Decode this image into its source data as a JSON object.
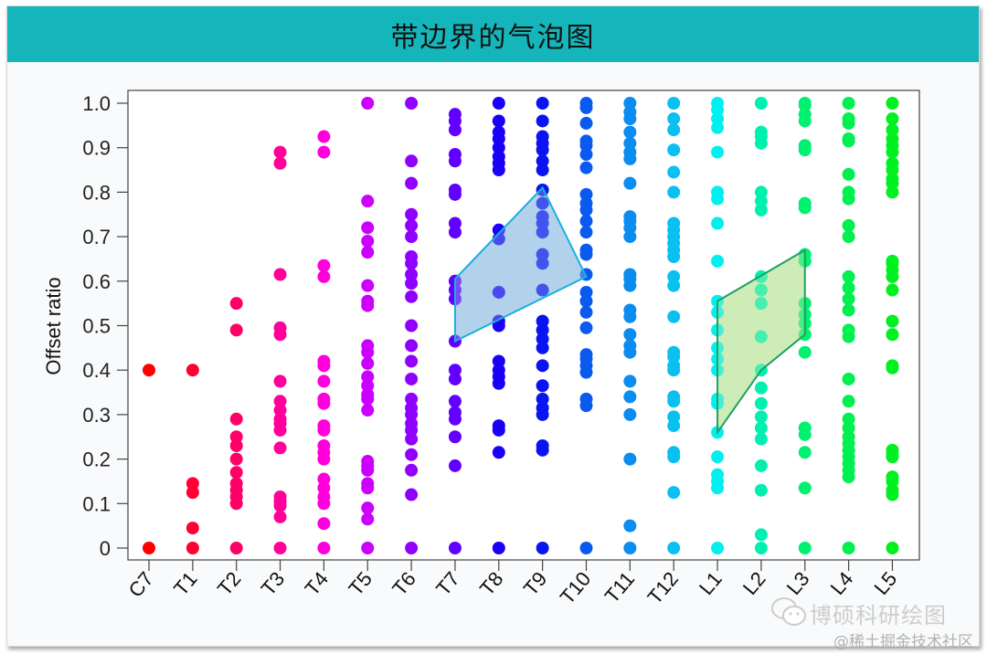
{
  "header": {
    "title": "带边界的气泡图"
  },
  "watermarks": {
    "wechat": "博硕科研绘图",
    "site": "@稀土掘金技术社区"
  },
  "chart_data": {
    "type": "scatter",
    "title": "带边界的气泡图",
    "xlabel": "",
    "ylabel": "Offset ratio",
    "ylim": [
      0,
      1.0
    ],
    "yticks": [
      "0",
      "0.1",
      "0.2",
      "0.3",
      "0.4",
      "0.5",
      "0.6",
      "0.7",
      "0.8",
      "0.9",
      "1.0"
    ],
    "grid": false,
    "legend": null,
    "categories": [
      "C7",
      "T1",
      "T2",
      "T3",
      "T4",
      "T5",
      "T6",
      "T7",
      "T8",
      "T9",
      "T10",
      "T11",
      "T12",
      "L1",
      "L2",
      "L3",
      "L4",
      "L5"
    ],
    "series": [
      {
        "name": "C7",
        "color": "#ff0000",
        "values": [
          0,
          0.4
        ]
      },
      {
        "name": "T1",
        "color": "#ff0033",
        "values": [
          0,
          0.045,
          0.125,
          0.145,
          0.4
        ]
      },
      {
        "name": "T2",
        "color": "#ff0066",
        "values": [
          0,
          0.1,
          0.115,
          0.13,
          0.145,
          0.17,
          0.2,
          0.23,
          0.25,
          0.29,
          0.49,
          0.55
        ]
      },
      {
        "name": "T3",
        "color": "#ff0099",
        "values": [
          0,
          0.07,
          0.095,
          0.105,
          0.115,
          0.225,
          0.265,
          0.28,
          0.29,
          0.31,
          0.33,
          0.375,
          0.48,
          0.495,
          0.615,
          0.865,
          0.89
        ]
      },
      {
        "name": "T4",
        "color": "#ff00dd",
        "values": [
          0,
          0.055,
          0.1,
          0.115,
          0.135,
          0.155,
          0.2,
          0.215,
          0.23,
          0.265,
          0.275,
          0.325,
          0.335,
          0.375,
          0.41,
          0.42,
          0.61,
          0.635,
          0.89,
          0.925
        ]
      },
      {
        "name": "T5",
        "color": "#cc00ff",
        "values": [
          0,
          0.065,
          0.09,
          0.135,
          0.145,
          0.175,
          0.185,
          0.195,
          0.31,
          0.335,
          0.345,
          0.365,
          0.385,
          0.415,
          0.44,
          0.455,
          0.545,
          0.555,
          0.59,
          0.665,
          0.69,
          0.72,
          0.78,
          1.0
        ]
      },
      {
        "name": "T6",
        "color": "#9000ff",
        "values": [
          0,
          0.12,
          0.175,
          0.21,
          0.245,
          0.265,
          0.28,
          0.3,
          0.315,
          0.335,
          0.38,
          0.42,
          0.455,
          0.5,
          0.565,
          0.595,
          0.615,
          0.64,
          0.655,
          0.7,
          0.725,
          0.75,
          0.82,
          0.87,
          1.0
        ]
      },
      {
        "name": "T7",
        "color": "#6200ff",
        "values": [
          0,
          0.185,
          0.25,
          0.29,
          0.305,
          0.33,
          0.38,
          0.4,
          0.465,
          0.56,
          0.58,
          0.6,
          0.71,
          0.73,
          0.795,
          0.805,
          0.87,
          0.885,
          0.94,
          0.96,
          0.975
        ]
      },
      {
        "name": "T8",
        "color": "#1a00f5",
        "values": [
          0,
          0.215,
          0.265,
          0.275,
          0.37,
          0.385,
          0.4,
          0.42,
          0.5,
          0.51,
          0.575,
          0.695,
          0.715,
          0.85,
          0.865,
          0.88,
          0.9,
          0.92,
          0.935,
          0.96,
          1.0
        ]
      },
      {
        "name": "T9",
        "color": "#0a14f0",
        "values": [
          0,
          0.22,
          0.23,
          0.3,
          0.315,
          0.335,
          0.365,
          0.41,
          0.45,
          0.47,
          0.49,
          0.51,
          0.58,
          0.64,
          0.66,
          0.71,
          0.73,
          0.745,
          0.775,
          0.805,
          0.85,
          0.87,
          0.895,
          0.91,
          0.925,
          0.96,
          1.0
        ]
      },
      {
        "name": "T10",
        "color": "#0a5af0",
        "values": [
          0,
          0.32,
          0.335,
          0.395,
          0.41,
          0.425,
          0.435,
          0.495,
          0.53,
          0.555,
          0.575,
          0.615,
          0.66,
          0.67,
          0.71,
          0.735,
          0.76,
          0.775,
          0.795,
          0.855,
          0.885,
          0.905,
          0.915,
          0.955,
          0.99,
          1.0
        ]
      },
      {
        "name": "T11",
        "color": "#0a8cf0",
        "values": [
          0,
          0.05,
          0.2,
          0.3,
          0.34,
          0.375,
          0.44,
          0.455,
          0.48,
          0.52,
          0.535,
          0.59,
          0.605,
          0.615,
          0.7,
          0.72,
          0.735,
          0.745,
          0.82,
          0.875,
          0.89,
          0.91,
          0.935,
          0.965,
          0.98,
          1.0
        ]
      },
      {
        "name": "T12",
        "color": "#0ac0f0",
        "values": [
          0,
          0.125,
          0.205,
          0.215,
          0.275,
          0.295,
          0.33,
          0.34,
          0.4,
          0.41,
          0.43,
          0.44,
          0.52,
          0.59,
          0.61,
          0.655,
          0.67,
          0.685,
          0.7,
          0.715,
          0.73,
          0.8,
          0.845,
          0.895,
          0.94,
          0.965,
          1.0
        ]
      },
      {
        "name": "L1",
        "color": "#00f0f0",
        "values": [
          0,
          0.135,
          0.15,
          0.165,
          0.205,
          0.26,
          0.325,
          0.335,
          0.4,
          0.425,
          0.45,
          0.49,
          0.53,
          0.555,
          0.645,
          0.73,
          0.785,
          0.8,
          0.89,
          0.945,
          0.965,
          0.985,
          1.0
        ]
      },
      {
        "name": "L2",
        "color": "#00f0b0",
        "values": [
          0,
          0.03,
          0.13,
          0.185,
          0.245,
          0.27,
          0.295,
          0.325,
          0.36,
          0.4,
          0.475,
          0.55,
          0.58,
          0.61,
          0.76,
          0.78,
          0.8,
          0.91,
          0.925,
          0.935,
          1.0
        ]
      },
      {
        "name": "L3",
        "color": "#00f070",
        "values": [
          0,
          0.135,
          0.215,
          0.255,
          0.27,
          0.44,
          0.48,
          0.505,
          0.525,
          0.55,
          0.645,
          0.66,
          0.765,
          0.775,
          0.895,
          0.905,
          0.96,
          0.975,
          0.995,
          1.0
        ]
      },
      {
        "name": "L4",
        "color": "#00f050",
        "values": [
          0,
          0.16,
          0.175,
          0.19,
          0.205,
          0.22,
          0.235,
          0.25,
          0.27,
          0.29,
          0.33,
          0.38,
          0.475,
          0.49,
          0.535,
          0.56,
          0.585,
          0.61,
          0.7,
          0.725,
          0.785,
          0.8,
          0.84,
          0.915,
          0.92,
          0.955,
          0.965,
          1.0
        ]
      },
      {
        "name": "L5",
        "color": "#00f020",
        "values": [
          0,
          0.12,
          0.13,
          0.15,
          0.16,
          0.205,
          0.21,
          0.22,
          0.405,
          0.41,
          0.48,
          0.51,
          0.58,
          0.61,
          0.625,
          0.64,
          0.645,
          0.8,
          0.82,
          0.83,
          0.85,
          0.865,
          0.89,
          0.905,
          0.92,
          0.94,
          0.965,
          1.0
        ]
      }
    ],
    "boundaries": [
      {
        "name": "boundary-T7-T10",
        "fill": "#a9cde8",
        "stroke": "#1ab0e0",
        "points": [
          [
            "T7",
            0.465
          ],
          [
            "T7",
            0.605
          ],
          [
            "T9",
            0.81
          ],
          [
            "T10",
            0.61
          ]
        ]
      },
      {
        "name": "boundary-L1-L3",
        "fill": "#c9eab0",
        "stroke": "#1fa060",
        "points": [
          [
            "L1",
            0.26
          ],
          [
            "L1",
            0.555
          ],
          [
            "L3",
            0.67
          ],
          [
            "L3",
            0.48
          ],
          [
            "L2",
            0.4
          ]
        ]
      }
    ]
  }
}
